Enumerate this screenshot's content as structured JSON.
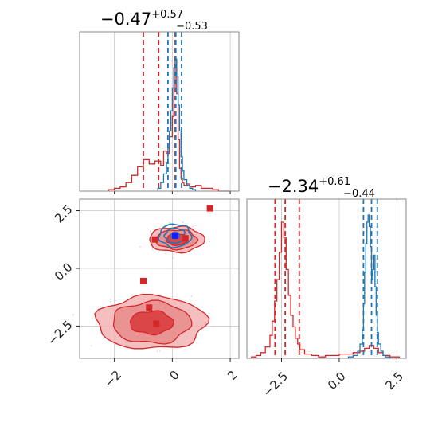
{
  "colors": {
    "red": "#d62728",
    "blue": "#1f77b4",
    "red_fill_light": "#f3b4b4",
    "red_fill_mid": "#e88b8b",
    "red_fill_dark": "#d8383b",
    "grid": "#c8c8c8",
    "frame": "#888888"
  },
  "chart_data": [
    {
      "type": "histogram",
      "panel": "top-left",
      "title": {
        "value": "−0.47",
        "sup": "+0.57",
        "sub": "−0.53"
      },
      "xlim": [
        -3.2,
        2.3
      ],
      "grid": true,
      "vlines": [
        {
          "series": "red",
          "x": [
            -1.0,
            -0.47,
            0.1
          ]
        },
        {
          "series": "blue",
          "x": [
            -0.15,
            0.12,
            0.32
          ]
        }
      ],
      "series": [
        {
          "color": "red",
          "bin_edges": [
            -2.2,
            -2.0,
            -1.8,
            -1.6,
            -1.4,
            -1.2,
            -1.0,
            -0.8,
            -0.6,
            -0.4,
            -0.3,
            -0.2,
            -0.1,
            0.0,
            0.05,
            0.1,
            0.15,
            0.2,
            0.25,
            0.3,
            0.35,
            0.4,
            0.5,
            0.6,
            0.8,
            1.0,
            1.2,
            1.4,
            1.6,
            2.0
          ],
          "counts": [
            0.01,
            0.02,
            0.03,
            0.06,
            0.11,
            0.17,
            0.22,
            0.19,
            0.21,
            0.18,
            0.28,
            0.26,
            0.38,
            0.52,
            0.72,
            0.92,
            0.68,
            0.36,
            0.16,
            0.09,
            0.06,
            0.04,
            0.05,
            0.03,
            0.04,
            0.02,
            0.02,
            0.01,
            0.0
          ]
        },
        {
          "color": "blue",
          "bin_edges": [
            -0.5,
            -0.4,
            -0.3,
            -0.2,
            -0.15,
            -0.1,
            -0.05,
            0.0,
            0.05,
            0.1,
            0.15,
            0.2,
            0.25,
            0.3,
            0.35,
            0.4,
            0.5,
            0.6,
            0.7,
            0.8
          ],
          "counts": [
            0.02,
            0.06,
            0.12,
            0.2,
            0.3,
            0.42,
            0.56,
            0.72,
            0.86,
            0.92,
            0.8,
            0.6,
            0.42,
            0.24,
            0.14,
            0.08,
            0.04,
            0.02,
            0.01
          ]
        }
      ]
    },
    {
      "type": "scatter",
      "panel": "bottom-left",
      "xlim": [
        -3.2,
        2.3
      ],
      "ylim": [
        -3.9,
        3.0
      ],
      "xticks": [
        "−2",
        "0",
        "2"
      ],
      "yticks": [
        "2.5",
        "0.0",
        "−2.5"
      ],
      "grid": true,
      "red_points": [
        [
          1.3,
          2.6
        ],
        [
          -0.6,
          1.25
        ],
        [
          0.45,
          1.3
        ],
        [
          -1.0,
          -0.55
        ],
        [
          -0.8,
          -1.7
        ],
        [
          -0.55,
          -2.4
        ]
      ],
      "blue_points": [
        [
          0.1,
          1.42
        ]
      ],
      "contours": [
        {
          "color": "red",
          "center": [
            -0.72,
            -2.35
          ],
          "radii": [
            [
              1.9,
              1.15
            ],
            [
              1.35,
              0.9
            ],
            [
              0.75,
              0.5
            ]
          ]
        },
        {
          "color": "red",
          "center": [
            0.15,
            1.25
          ],
          "radii": [
            [
              0.95,
              0.55
            ],
            [
              0.7,
              0.42
            ],
            [
              0.35,
              0.25
            ]
          ]
        },
        {
          "color": "blue",
          "center": [
            0.1,
            1.42
          ],
          "radii": [
            [
              0.55,
              0.5
            ],
            [
              0.35,
              0.32
            ],
            [
              0.15,
              0.14
            ]
          ]
        }
      ]
    },
    {
      "type": "histogram",
      "panel": "bottom-right",
      "title": {
        "value": "−2.34",
        "sup": "+0.61",
        "sub": "−0.44"
      },
      "xlim": [
        -4.0,
        2.9
      ],
      "xticks": [
        "−2.5",
        "0.0",
        "2.5"
      ],
      "grid": true,
      "vlines": [
        {
          "series": "red",
          "x": [
            -2.78,
            -2.34,
            -1.73
          ]
        },
        {
          "series": "blue",
          "x": [
            1.05,
            1.4,
            1.65
          ]
        }
      ],
      "series": [
        {
          "color": "red",
          "bin_edges": [
            -3.8,
            -3.6,
            -3.4,
            -3.2,
            -3.0,
            -2.9,
            -2.8,
            -2.7,
            -2.6,
            -2.5,
            -2.4,
            -2.3,
            -2.2,
            -2.1,
            -2.0,
            -1.9,
            -1.8,
            -1.7,
            -1.5,
            -1.2,
            -0.9,
            -0.6,
            -0.3,
            0.0,
            0.3,
            0.6,
            0.9,
            1.1,
            1.3,
            1.5,
            1.7,
            1.9,
            2.2,
            2.6
          ],
          "counts": [
            0.01,
            0.02,
            0.04,
            0.08,
            0.16,
            0.26,
            0.4,
            0.55,
            0.74,
            0.95,
            0.84,
            0.62,
            0.44,
            0.3,
            0.22,
            0.14,
            0.1,
            0.06,
            0.03,
            0.02,
            0.01,
            0.02,
            0.02,
            0.03,
            0.03,
            0.04,
            0.05,
            0.07,
            0.09,
            0.07,
            0.04,
            0.02,
            0.01
          ]
        },
        {
          "color": "blue",
          "bin_edges": [
            0.4,
            0.6,
            0.8,
            0.9,
            1.0,
            1.05,
            1.1,
            1.15,
            1.2,
            1.25,
            1.3,
            1.35,
            1.4,
            1.45,
            1.5,
            1.55,
            1.6,
            1.65,
            1.7,
            1.8,
            1.9,
            2.0,
            2.2
          ],
          "counts": [
            0.01,
            0.02,
            0.05,
            0.1,
            0.2,
            0.38,
            0.6,
            0.8,
            0.95,
            1.0,
            0.92,
            0.78,
            0.55,
            0.62,
            0.72,
            0.5,
            0.3,
            0.18,
            0.1,
            0.05,
            0.02,
            0.01
          ]
        }
      ]
    }
  ]
}
